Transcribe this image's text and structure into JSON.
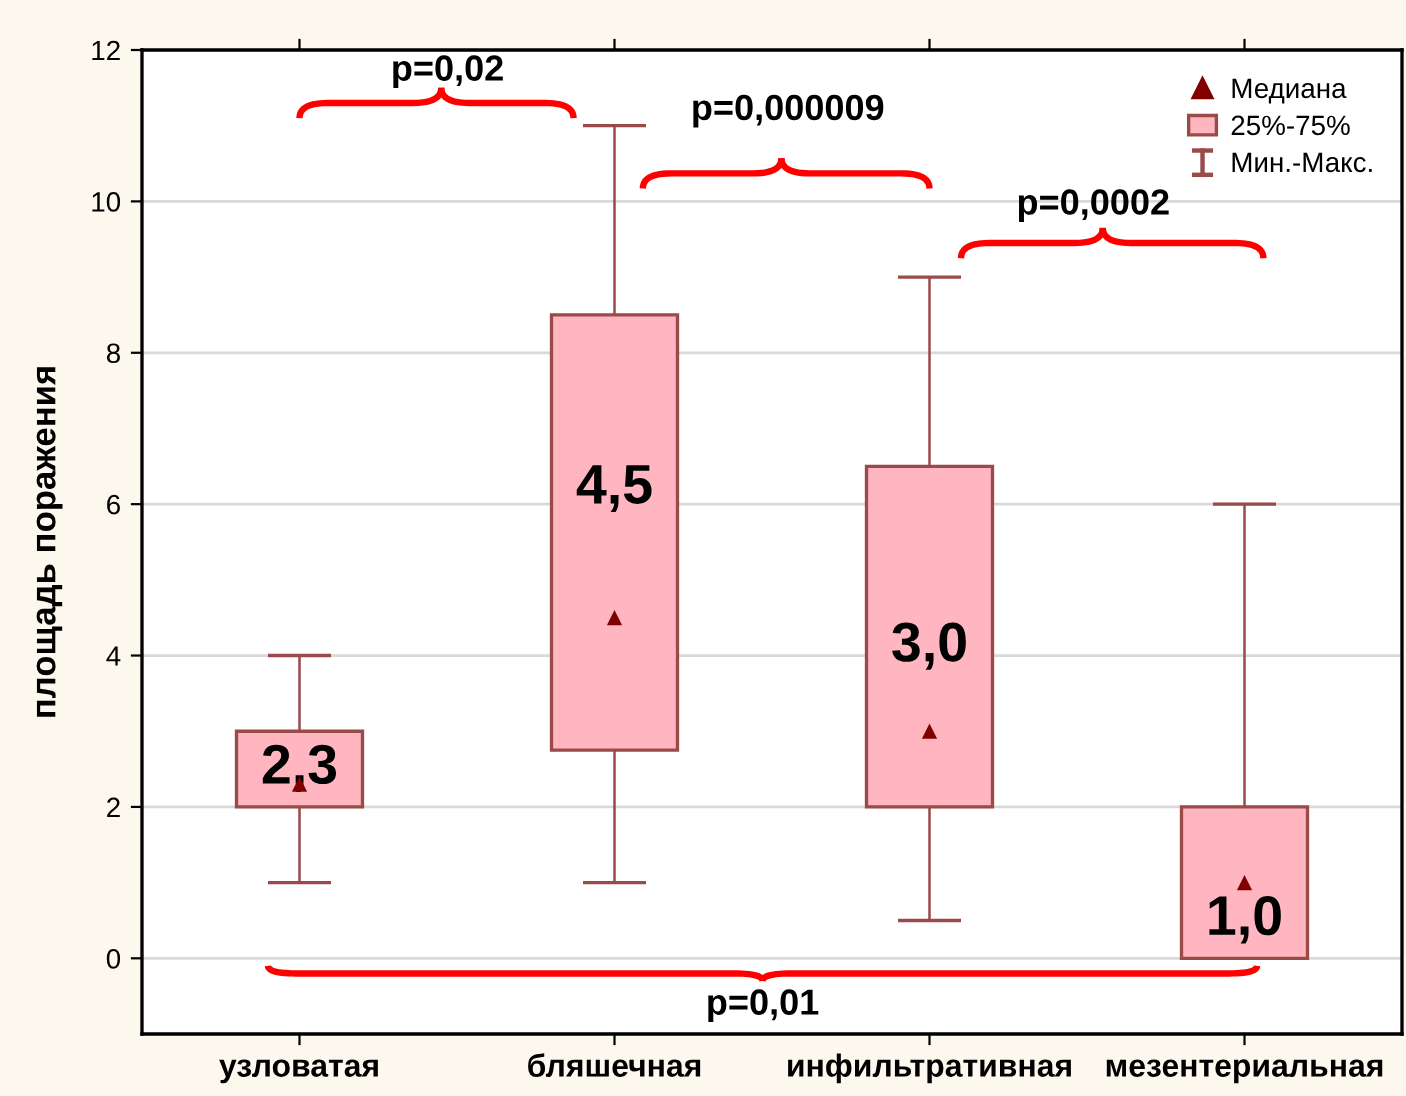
{
  "chart_data": {
    "type": "bar",
    "ylabel": "площадь поражения",
    "categories": [
      "узловатая",
      "бляшечная",
      "инфильтративная",
      "мезентериальная"
    ],
    "series": [
      {
        "name": "Медиана",
        "type": "scatter",
        "marker": "triangle",
        "color": "#800000",
        "values": [
          2.3,
          4.5,
          3.0,
          1.0
        ],
        "value_labels": [
          "2,3",
          "4,5",
          "3,0",
          "1,0"
        ]
      },
      {
        "name": "25%-75%",
        "color": "#ffb6c1",
        "base": [
          2,
          2.75,
          2,
          0
        ],
        "values": [
          1,
          5.75,
          4.5,
          2
        ]
      },
      {
        "name": "Мин.-Макс.",
        "color": "#9b4a4a",
        "base": [
          1,
          1,
          0.5,
          0
        ],
        "values": [
          3,
          10,
          8.5,
          6
        ]
      }
    ],
    "ylim": [
      -1,
      12
    ],
    "yticks": [
      0,
      2,
      4,
      6,
      8,
      10,
      12
    ],
    "grid": "y",
    "legend": "top right",
    "annotations": [
      "p=0,02",
      "p=0,000009",
      "p=0,0002",
      "p=0,01"
    ]
  }
}
